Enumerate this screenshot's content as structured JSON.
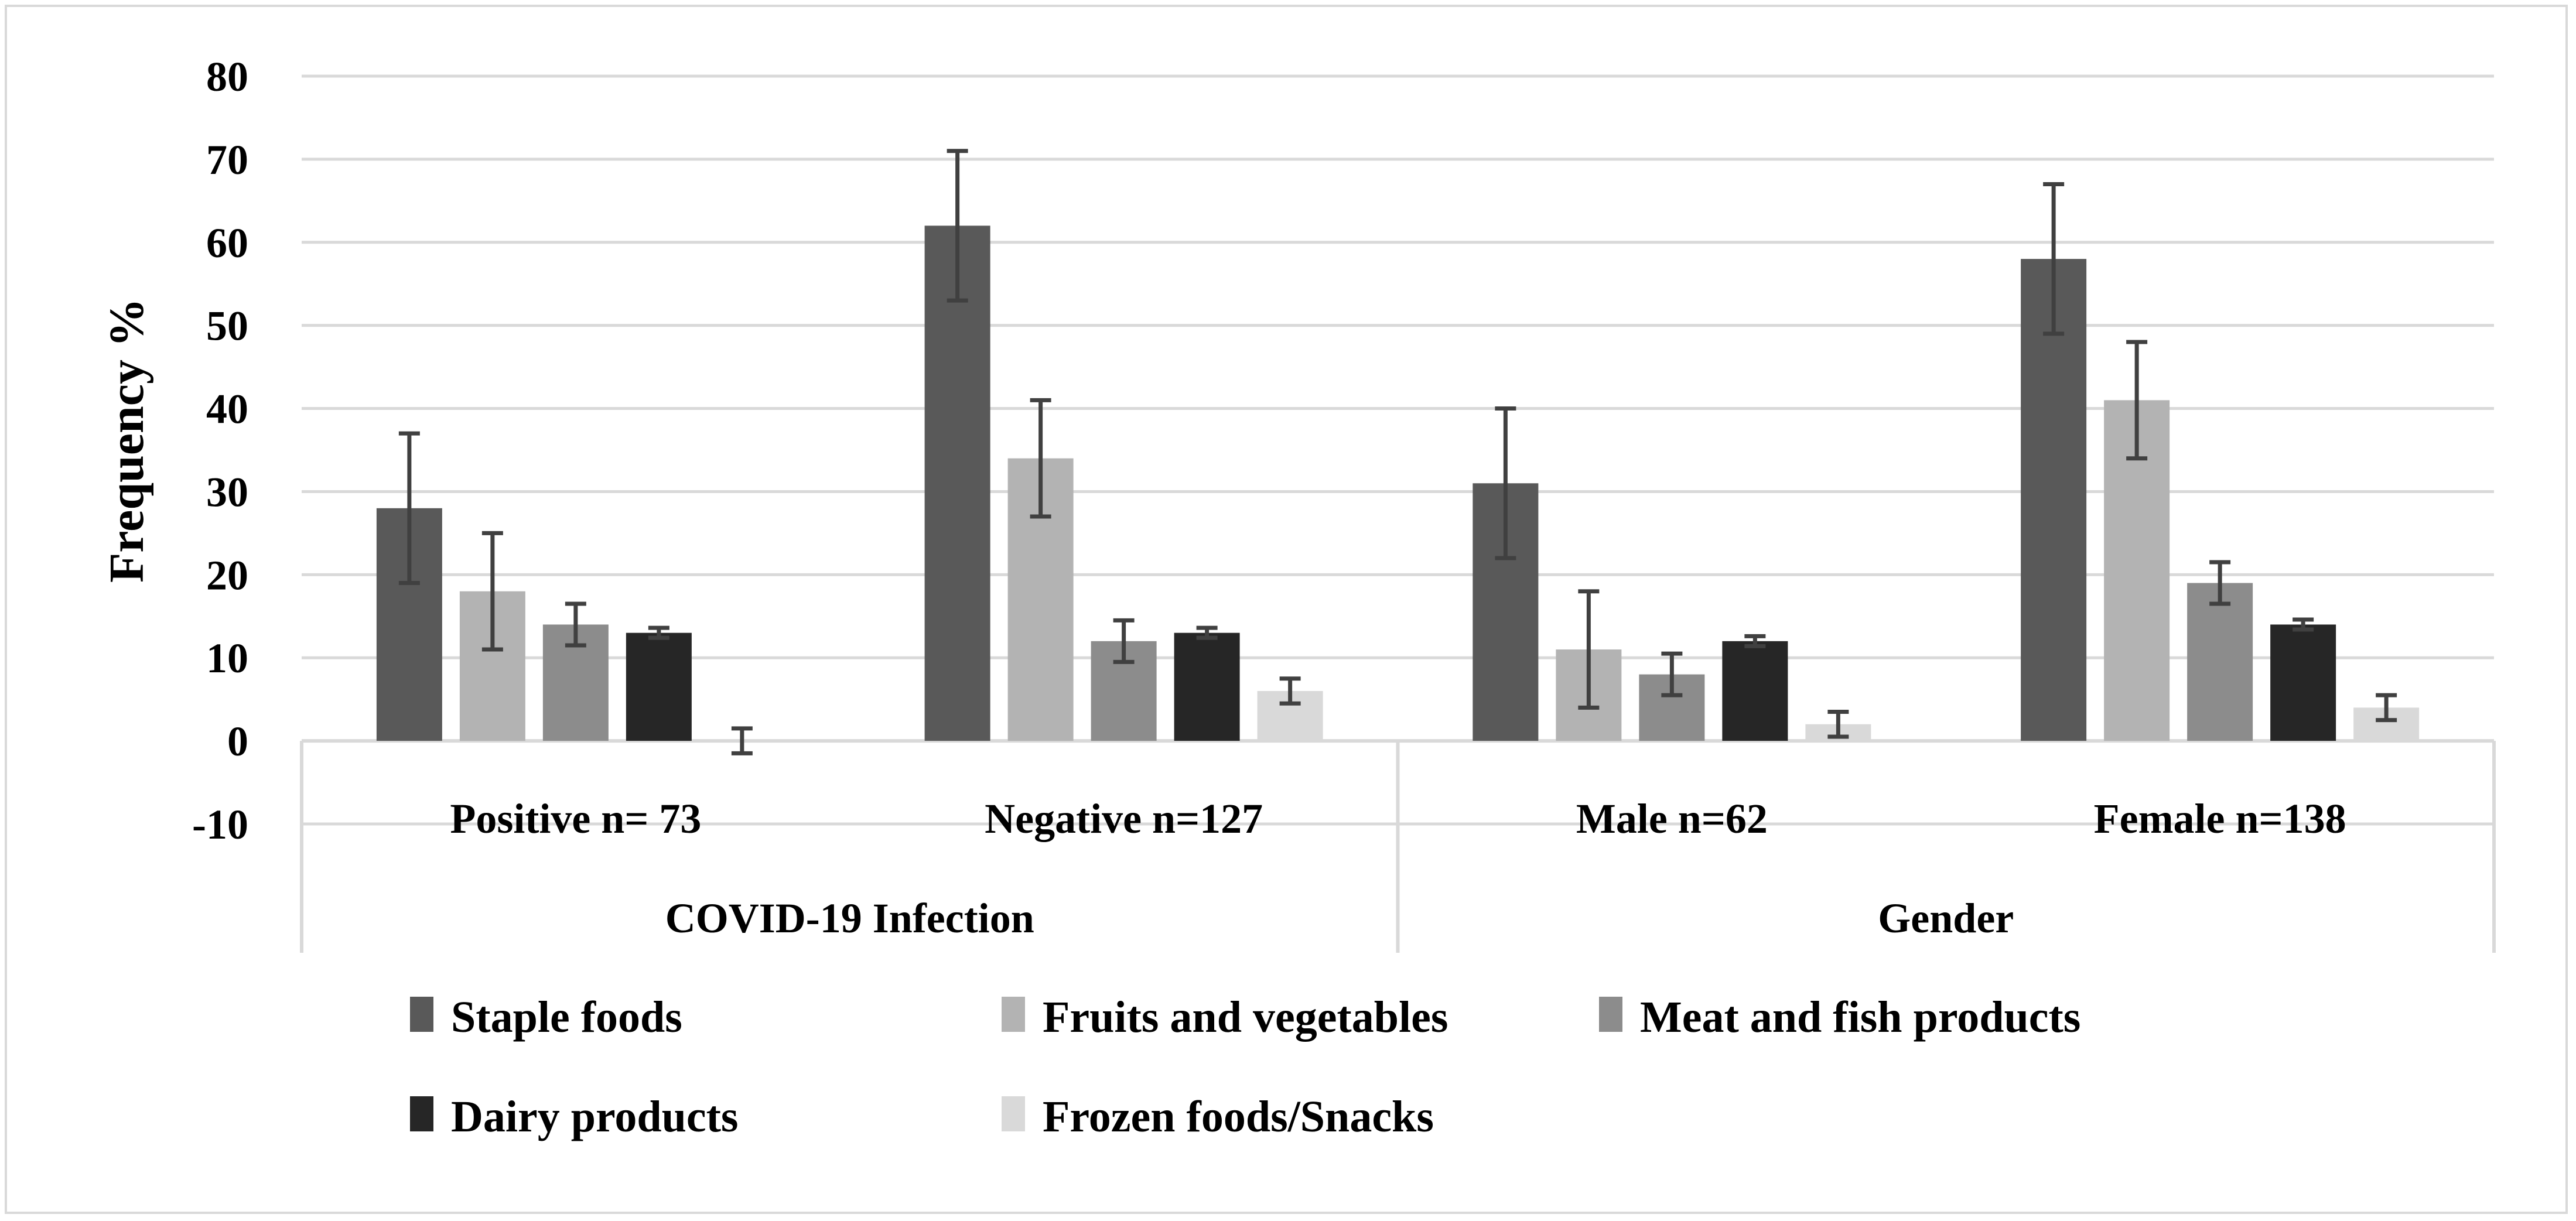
{
  "chart_data": {
    "type": "bar",
    "ylabel": "Frequency %",
    "ylim": [
      -10,
      80
    ],
    "yticks": [
      -10,
      0,
      10,
      20,
      30,
      40,
      50,
      60,
      70,
      80
    ],
    "grid": true,
    "categories": [
      "Positive n= 73",
      "Negative n=127",
      "Male n=62",
      "Female n=138"
    ],
    "groups": [
      {
        "label": "COVID-19 Infection",
        "categories": [
          "Positive n= 73",
          "Negative n=127"
        ]
      },
      {
        "label": "Gender",
        "categories": [
          "Male n=62",
          "Female n=138"
        ]
      }
    ],
    "series": [
      {
        "name": "Staple foods",
        "color": "#595959",
        "values": [
          28,
          62,
          31,
          58
        ],
        "errors": [
          9,
          9,
          9,
          9
        ]
      },
      {
        "name": "Fruits and vegetables",
        "color": "#b3b3b3",
        "values": [
          18,
          34,
          11,
          41
        ],
        "errors": [
          7,
          7,
          7,
          7
        ]
      },
      {
        "name": "Meat and fish products",
        "color": "#8c8c8c",
        "values": [
          14,
          12,
          8,
          19
        ],
        "errors": [
          2.5,
          2.5,
          2.5,
          2.5
        ]
      },
      {
        "name": "Dairy products",
        "color": "#262626",
        "values": [
          13,
          13,
          12,
          14
        ],
        "errors": [
          0.6,
          0.6,
          0.6,
          0.6
        ]
      },
      {
        "name": "Frozen foods/Snacks",
        "color": "#d9d9d9",
        "values": [
          0,
          6,
          2,
          4
        ],
        "errors": [
          1.5,
          1.5,
          1.5,
          1.5
        ]
      }
    ],
    "legend_position": "bottom"
  }
}
